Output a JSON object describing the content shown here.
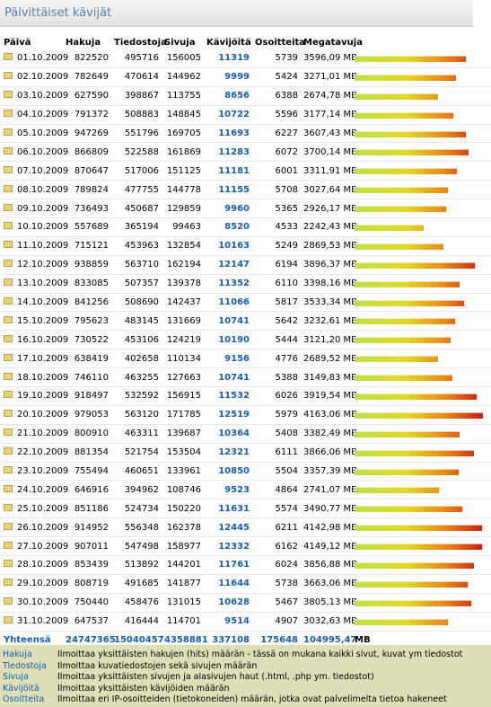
{
  "header": {
    "title": "Päivittäiset kävijät"
  },
  "columns": {
    "date": "Päivä",
    "hits": "Hakuja",
    "files": "Tiedostoja",
    "pages": "Sivuja",
    "visitors": "Kävijöitä",
    "addresses": "Osoitteita",
    "megabytes": "Megatavuja"
  },
  "rows": [
    {
      "date": "01.10.2009",
      "hits": "822520",
      "files": "495716",
      "pages": "156005",
      "visitors": "11319",
      "addresses": "5739",
      "megabytes": "3596,09 MB",
      "bar": 0.87
    },
    {
      "date": "02.10.2009",
      "hits": "782649",
      "files": "470614",
      "pages": "144962",
      "visitors": "9999",
      "addresses": "5424",
      "megabytes": "3271,01 MB",
      "bar": 0.79
    },
    {
      "date": "03.10.2009",
      "hits": "627590",
      "files": "398867",
      "pages": "113755",
      "visitors": "8656",
      "addresses": "6388",
      "megabytes": "2674,78 MB",
      "bar": 0.65
    },
    {
      "date": "04.10.2009",
      "hits": "791372",
      "files": "508883",
      "pages": "148845",
      "visitors": "10722",
      "addresses": "5596",
      "megabytes": "3177,14 MB",
      "bar": 0.77
    },
    {
      "date": "05.10.2009",
      "hits": "947269",
      "files": "551796",
      "pages": "169705",
      "visitors": "11693",
      "addresses": "6227",
      "megabytes": "3607,43 MB",
      "bar": 0.87
    },
    {
      "date": "06.10.2009",
      "hits": "866809",
      "files": "522588",
      "pages": "161869",
      "visitors": "11283",
      "addresses": "6072",
      "megabytes": "3700,14 MB",
      "bar": 0.89
    },
    {
      "date": "07.10.2009",
      "hits": "870647",
      "files": "517006",
      "pages": "151125",
      "visitors": "11181",
      "addresses": "6001",
      "megabytes": "3311,91 MB",
      "bar": 0.8
    },
    {
      "date": "08.10.2009",
      "hits": "789824",
      "files": "477755",
      "pages": "144778",
      "visitors": "11155",
      "addresses": "5708",
      "megabytes": "3027,64 MB",
      "bar": 0.73
    },
    {
      "date": "09.10.2009",
      "hits": "736493",
      "files": "450687",
      "pages": "129859",
      "visitors": "9960",
      "addresses": "5365",
      "megabytes": "2926,17 MB",
      "bar": 0.71
    },
    {
      "date": "10.10.2009",
      "hits": "557689",
      "files": "365194",
      "pages": "99463",
      "visitors": "8520",
      "addresses": "4533",
      "megabytes": "2242,43 MB",
      "bar": 0.54
    },
    {
      "date": "11.10.2009",
      "hits": "715121",
      "files": "453963",
      "pages": "132854",
      "visitors": "10163",
      "addresses": "5249",
      "megabytes": "2869,53 MB",
      "bar": 0.69
    },
    {
      "date": "12.10.2009",
      "hits": "938859",
      "files": "563710",
      "pages": "162194",
      "visitors": "12147",
      "addresses": "6194",
      "megabytes": "3896,37 MB",
      "bar": 0.94
    },
    {
      "date": "13.10.2009",
      "hits": "833085",
      "files": "507357",
      "pages": "139378",
      "visitors": "11352",
      "addresses": "6110",
      "megabytes": "3398,16 MB",
      "bar": 0.82
    },
    {
      "date": "14.10.2009",
      "hits": "841256",
      "files": "508690",
      "pages": "142437",
      "visitors": "11066",
      "addresses": "5817",
      "megabytes": "3533,34 MB",
      "bar": 0.85
    },
    {
      "date": "15.10.2009",
      "hits": "795623",
      "files": "483145",
      "pages": "131669",
      "visitors": "10741",
      "addresses": "5642",
      "megabytes": "3232,61 MB",
      "bar": 0.78
    },
    {
      "date": "16.10.2009",
      "hits": "730522",
      "files": "453106",
      "pages": "124219",
      "visitors": "10190",
      "addresses": "5444",
      "megabytes": "3121,20 MB",
      "bar": 0.75
    },
    {
      "date": "17.10.2009",
      "hits": "638419",
      "files": "402658",
      "pages": "110134",
      "visitors": "9156",
      "addresses": "4776",
      "megabytes": "2689,52 MB",
      "bar": 0.65
    },
    {
      "date": "18.10.2009",
      "hits": "746110",
      "files": "463255",
      "pages": "127663",
      "visitors": "10741",
      "addresses": "5388",
      "megabytes": "3149,83 MB",
      "bar": 0.76
    },
    {
      "date": "19.10.2009",
      "hits": "918497",
      "files": "532592",
      "pages": "156915",
      "visitors": "11532",
      "addresses": "6026",
      "megabytes": "3919,54 MB",
      "bar": 0.95
    },
    {
      "date": "20.10.2009",
      "hits": "979053",
      "files": "563120",
      "pages": "171785",
      "visitors": "12519",
      "addresses": "5979",
      "megabytes": "4163,06 MB",
      "bar": 1.0
    },
    {
      "date": "21.10.2009",
      "hits": "800910",
      "files": "463311",
      "pages": "139687",
      "visitors": "10364",
      "addresses": "5408",
      "megabytes": "3382,49 MB",
      "bar": 0.82
    },
    {
      "date": "22.10.2009",
      "hits": "881354",
      "files": "521754",
      "pages": "153504",
      "visitors": "12321",
      "addresses": "6111",
      "megabytes": "3866,06 MB",
      "bar": 0.93
    },
    {
      "date": "23.10.2009",
      "hits": "755494",
      "files": "460651",
      "pages": "133961",
      "visitors": "10850",
      "addresses": "5504",
      "megabytes": "3357,39 MB",
      "bar": 0.81
    },
    {
      "date": "24.10.2009",
      "hits": "646916",
      "files": "394962",
      "pages": "108746",
      "visitors": "9523",
      "addresses": "4864",
      "megabytes": "2741,07 MB",
      "bar": 0.66
    },
    {
      "date": "25.10.2009",
      "hits": "851186",
      "files": "524734",
      "pages": "150220",
      "visitors": "11631",
      "addresses": "5574",
      "megabytes": "3490,77 MB",
      "bar": 0.84
    },
    {
      "date": "26.10.2009",
      "hits": "914952",
      "files": "556348",
      "pages": "162378",
      "visitors": "12445",
      "addresses": "6211",
      "megabytes": "4142,98 MB",
      "bar": 0.99
    },
    {
      "date": "27.10.2009",
      "hits": "907011",
      "files": "547498",
      "pages": "158977",
      "visitors": "12332",
      "addresses": "6162",
      "megabytes": "4149,12 MB",
      "bar": 0.99
    },
    {
      "date": "28.10.2009",
      "hits": "853439",
      "files": "513892",
      "pages": "144201",
      "visitors": "11761",
      "addresses": "6024",
      "megabytes": "3856,88 MB",
      "bar": 0.93
    },
    {
      "date": "29.10.2009",
      "hits": "808719",
      "files": "491685",
      "pages": "141877",
      "visitors": "11644",
      "addresses": "5738",
      "megabytes": "3663,06 MB",
      "bar": 0.88
    },
    {
      "date": "30.10.2009",
      "hits": "750440",
      "files": "458476",
      "pages": "131015",
      "visitors": "10628",
      "addresses": "5467",
      "megabytes": "3805,13 MB",
      "bar": 0.91
    },
    {
      "date": "31.10.2009",
      "hits": "647537",
      "files": "416444",
      "pages": "114701",
      "visitors": "9514",
      "addresses": "4907",
      "megabytes": "3032,63 MB",
      "bar": 0.73
    }
  ],
  "totals": {
    "label": "Yhteensä",
    "hits": "24747365",
    "files": "15040457",
    "pages": "4358881",
    "visitors": "337108",
    "addresses": "175648",
    "megabytes_value": "104995,47",
    "megabytes_unit": "MB"
  },
  "legend": [
    {
      "term": "Hakuja",
      "desc": "Ilmoittaa yksittäisten hakujen (hits) määrän - tässä on mukana kaikki sivut, kuvat ym tiedostot"
    },
    {
      "term": "Tiedostoja",
      "desc": "Ilmoittaa kuvatiedostojen sekä sivujen määrän"
    },
    {
      "term": "Sivuja",
      "desc": "Ilmoittaa yksittäisten sivujen ja alasivujen haut (.html, .php ym. tiedostot)"
    },
    {
      "term": "Kävijöitä",
      "desc": "Ilmoittaa yksittäisten kävijöiden määrän"
    },
    {
      "term": "Osoitteita",
      "desc": "Ilmoittaa eri IP-osoitteiden (tietokoneiden) määrän, jotka ovat palvelimelta tietoa hakeneet"
    }
  ]
}
